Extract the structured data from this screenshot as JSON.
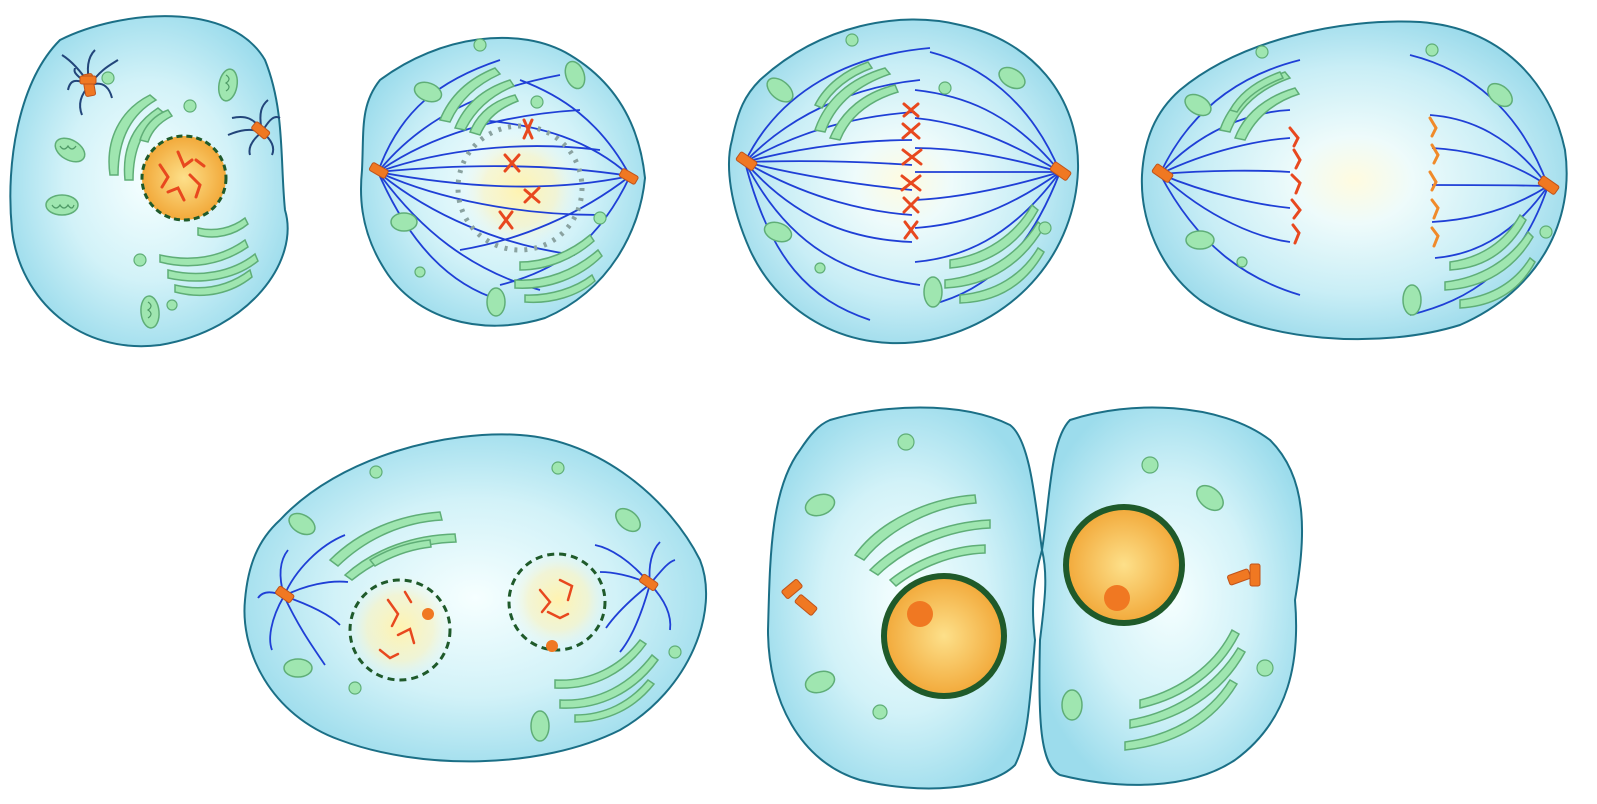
{
  "diagram": {
    "subject": "mitosis-stages",
    "stages": [
      {
        "key": "interphase-prophase"
      },
      {
        "key": "prometaphase"
      },
      {
        "key": "metaphase"
      },
      {
        "key": "anaphase"
      },
      {
        "key": "telophase"
      },
      {
        "key": "cytokinesis"
      }
    ],
    "colors": {
      "cytoplasm_edge": "#1b6f86",
      "cytoplasm_fill": "#a9e3f0",
      "cytoplasm_center": "#f6ffff",
      "spindle": "#1f3fd6",
      "astral_dark": "#22457a",
      "centrosome": "#f07822",
      "chromosome": "#e8481e",
      "chromatid_light": "#f08a2a",
      "nucleus_fill": "#f4b23a",
      "nucleus_glow": "#fde69b",
      "nuclear_envelope": "#1f5a2a",
      "organelle_fill": "#9fe6b0",
      "organelle_edge": "#5fae77"
    }
  }
}
